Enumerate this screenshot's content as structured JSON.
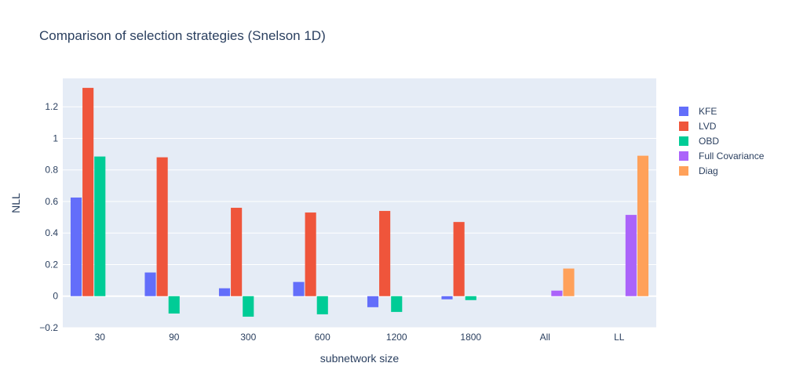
{
  "chart_data": {
    "type": "bar",
    "title": "Comparison of selection strategies (Snelson 1D)",
    "xlabel": "subnetwork size",
    "ylabel": "NLL",
    "categories": [
      "30",
      "90",
      "300",
      "600",
      "1200",
      "1800",
      "All",
      "LL"
    ],
    "ylim": [
      -0.2,
      1.38
    ],
    "yticks": [
      -0.2,
      0,
      0.2,
      0.4,
      0.6,
      0.8,
      1,
      1.2
    ],
    "ytick_labels": [
      "−0.2",
      "0",
      "0.2",
      "0.4",
      "0.6",
      "0.8",
      "1",
      "1.2"
    ],
    "grid": true,
    "legend_position": "top-right",
    "series": [
      {
        "name": "KFE",
        "color": "#636efa",
        "values": [
          0.625,
          0.15,
          0.05,
          0.09,
          -0.07,
          -0.02,
          null,
          null
        ]
      },
      {
        "name": "LVD",
        "color": "#ef553b",
        "values": [
          1.32,
          0.88,
          0.56,
          0.53,
          0.54,
          0.47,
          null,
          null
        ]
      },
      {
        "name": "OBD",
        "color": "#00cc96",
        "values": [
          0.885,
          -0.11,
          -0.13,
          -0.115,
          -0.1,
          -0.025,
          null,
          null
        ]
      },
      {
        "name": "Full Covariance",
        "color": "#ab63fa",
        "values": [
          null,
          null,
          null,
          null,
          null,
          null,
          0.035,
          0.515
        ]
      },
      {
        "name": "Diag",
        "color": "#ffa15a",
        "values": [
          null,
          null,
          null,
          null,
          null,
          null,
          0.175,
          0.89
        ]
      }
    ]
  }
}
